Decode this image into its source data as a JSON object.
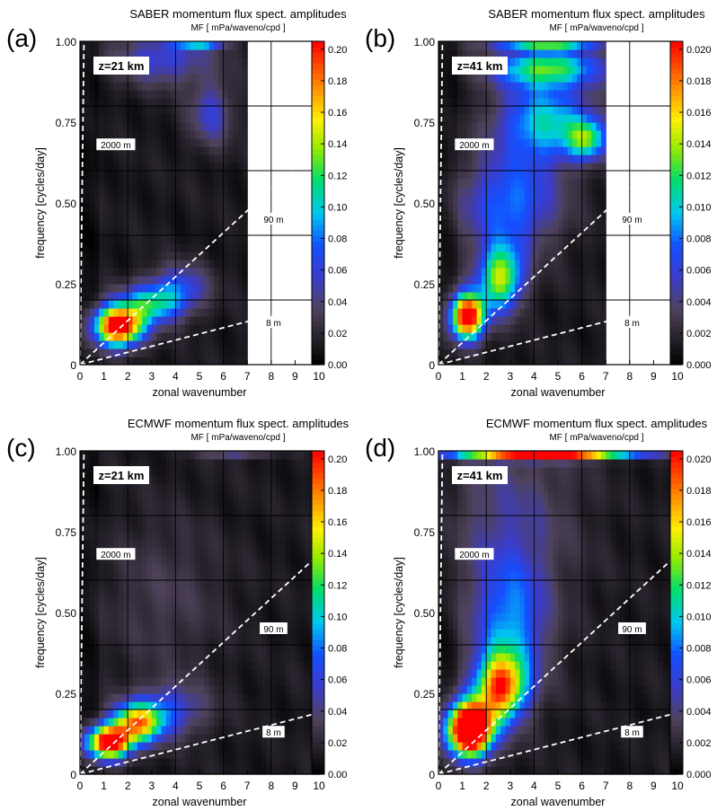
{
  "chart_data": [
    {
      "type": "heatmap",
      "panel_label": "(a)",
      "title": "SABER momentum flux spect. amplitudes",
      "subtitle": "MF [ mPa/waveno/cpd ]",
      "xlabel": "zonal wavenumber",
      "ylabel": "frequency [cycles/day]",
      "altitude_label": "z=21 km",
      "x_ticks": [
        "0",
        "1",
        "2",
        "3",
        "4",
        "5",
        "6",
        "7",
        "8",
        "9",
        "10"
      ],
      "y_ticks": [
        "0",
        "0.25",
        "0.50",
        "0.75",
        "1.00"
      ],
      "xlim": [
        0,
        10
      ],
      "ylim": [
        0,
        1
      ],
      "data_xmax": 7,
      "colorbar_ticks": [
        "0.00",
        "0.02",
        "0.04",
        "0.06",
        "0.08",
        "0.10",
        "0.12",
        "0.14",
        "0.16",
        "0.18",
        "0.20"
      ],
      "colorbar_range": [
        0,
        0.205
      ],
      "vertical_wavelength_lines": [
        {
          "label": "2000 m",
          "slope": 6.0,
          "label_at": [
            1.5,
            0.68
          ]
        },
        {
          "label": "90 m",
          "slope": 0.068,
          "label_at": [
            8.1,
            0.45
          ]
        },
        {
          "label": "8 m",
          "slope": 0.019,
          "label_at": [
            8.1,
            0.13
          ]
        }
      ],
      "features": [
        {
          "x": 1.6,
          "y": 0.12,
          "sx": 1.0,
          "sy": 0.06,
          "amp": 0.22
        },
        {
          "x": 3.0,
          "y": 0.19,
          "sx": 1.3,
          "sy": 0.06,
          "amp": 0.09
        },
        {
          "x": 4.2,
          "y": 0.24,
          "sx": 1.2,
          "sy": 0.07,
          "amp": 0.05
        },
        {
          "x": 5.5,
          "y": 0.78,
          "sx": 0.9,
          "sy": 0.1,
          "amp": 0.045
        },
        {
          "x": 3.5,
          "y": 0.95,
          "sx": 2.0,
          "sy": 0.08,
          "amp": 0.05
        },
        {
          "x": 5.0,
          "y": 1.0,
          "sx": 1.0,
          "sy": 0.02,
          "amp": 0.09
        }
      ]
    },
    {
      "type": "heatmap",
      "panel_label": "(b)",
      "title": "SABER momentum flux spect. amplitudes",
      "subtitle": "MF [ mPa/waveno/cpd ]",
      "xlabel": "zonal wavenumber",
      "ylabel": "frequency [cycles/day]",
      "altitude_label": "z=41 km",
      "x_ticks": [
        "0",
        "1",
        "2",
        "3",
        "4",
        "5",
        "6",
        "7",
        "8",
        "9",
        "10"
      ],
      "y_ticks": [
        "0",
        "0.25",
        "0.50",
        "0.75",
        "1.00"
      ],
      "xlim": [
        0,
        10
      ],
      "ylim": [
        0,
        1
      ],
      "data_xmax": 7,
      "colorbar_ticks": [
        "0.000",
        "0.002",
        "0.004",
        "0.006",
        "0.008",
        "0.010",
        "0.012",
        "0.014",
        "0.016",
        "0.018",
        "0.020"
      ],
      "colorbar_range": [
        0,
        0.0205
      ],
      "vertical_wavelength_lines": [
        {
          "label": "2000 m",
          "slope": 6.0,
          "label_at": [
            1.5,
            0.68
          ]
        },
        {
          "label": "90 m",
          "slope": 0.068,
          "label_at": [
            8.1,
            0.45
          ]
        },
        {
          "label": "8 m",
          "slope": 0.019,
          "label_at": [
            8.1,
            0.13
          ]
        }
      ],
      "features": [
        {
          "x": 1.2,
          "y": 0.15,
          "sx": 0.7,
          "sy": 0.07,
          "amp": 0.022
        },
        {
          "x": 2.6,
          "y": 0.27,
          "sx": 0.9,
          "sy": 0.1,
          "amp": 0.013
        },
        {
          "x": 3.0,
          "y": 0.5,
          "sx": 2.0,
          "sy": 0.15,
          "amp": 0.007
        },
        {
          "x": 4.5,
          "y": 0.75,
          "sx": 2.0,
          "sy": 0.12,
          "amp": 0.009
        },
        {
          "x": 6.2,
          "y": 0.7,
          "sx": 0.8,
          "sy": 0.06,
          "amp": 0.009
        },
        {
          "x": 4.5,
          "y": 0.92,
          "sx": 2.2,
          "sy": 0.06,
          "amp": 0.011
        },
        {
          "x": 4.5,
          "y": 1.0,
          "sx": 2.2,
          "sy": 0.02,
          "amp": 0.012
        }
      ]
    },
    {
      "type": "heatmap",
      "panel_label": "(c)",
      "title": "ECMWF momentum flux spect. amplitudes",
      "subtitle": "MF [ mPa/waveno/cpd ]",
      "xlabel": "zonal wavenumber",
      "ylabel": "frequency [cycles/day]",
      "altitude_label": "z=21 km",
      "x_ticks": [
        "0",
        "1",
        "2",
        "3",
        "4",
        "5",
        "6",
        "7",
        "8",
        "9",
        "10"
      ],
      "y_ticks": [
        "0",
        "0.25",
        "0.50",
        "0.75",
        "1.00"
      ],
      "xlim": [
        0,
        10
      ],
      "ylim": [
        0,
        1
      ],
      "data_xmax": 10,
      "colorbar_ticks": [
        "0.00",
        "0.02",
        "0.04",
        "0.06",
        "0.08",
        "0.10",
        "0.12",
        "0.14",
        "0.16",
        "0.18",
        "0.20"
      ],
      "colorbar_range": [
        0,
        0.205
      ],
      "vertical_wavelength_lines": [
        {
          "label": "2000 m",
          "slope": 6.0,
          "label_at": [
            1.5,
            0.68
          ]
        },
        {
          "label": "90 m",
          "slope": 0.068,
          "label_at": [
            8.1,
            0.45
          ]
        },
        {
          "label": "8 m",
          "slope": 0.019,
          "label_at": [
            8.1,
            0.13
          ]
        }
      ],
      "features": [
        {
          "x": 1.2,
          "y": 0.1,
          "sx": 0.9,
          "sy": 0.05,
          "amp": 0.22
        },
        {
          "x": 2.4,
          "y": 0.16,
          "sx": 1.0,
          "sy": 0.06,
          "amp": 0.15
        },
        {
          "x": 3.8,
          "y": 0.2,
          "sx": 1.5,
          "sy": 0.08,
          "amp": 0.05
        },
        {
          "x": 3.5,
          "y": 0.55,
          "sx": 2.5,
          "sy": 0.25,
          "amp": 0.018
        },
        {
          "x": 6.5,
          "y": 1.0,
          "sx": 1.5,
          "sy": 0.02,
          "amp": 0.04
        }
      ]
    },
    {
      "type": "heatmap",
      "panel_label": "(d)",
      "title": "ECMWF momentum flux spect. amplitudes",
      "subtitle": "MF [ mPa/waveno/cpd ]",
      "xlabel": "zonal wavenumber",
      "ylabel": "frequency [cycles/day]",
      "altitude_label": "z=41 km",
      "x_ticks": [
        "0",
        "1",
        "2",
        "3",
        "4",
        "5",
        "6",
        "7",
        "8",
        "9",
        "10"
      ],
      "y_ticks": [
        "0",
        "0.25",
        "0.50",
        "0.75",
        "1.00"
      ],
      "xlim": [
        0,
        10
      ],
      "ylim": [
        0,
        1
      ],
      "data_xmax": 10,
      "colorbar_ticks": [
        "0.000",
        "0.002",
        "0.004",
        "0.006",
        "0.008",
        "0.010",
        "0.012",
        "0.014",
        "0.016",
        "0.018",
        "0.020"
      ],
      "colorbar_range": [
        0,
        0.0205
      ],
      "vertical_wavelength_lines": [
        {
          "label": "2000 m",
          "slope": 6.0,
          "label_at": [
            1.5,
            0.68
          ]
        },
        {
          "label": "90 m",
          "slope": 0.068,
          "label_at": [
            8.1,
            0.45
          ]
        },
        {
          "label": "8 m",
          "slope": 0.019,
          "label_at": [
            8.1,
            0.13
          ]
        }
      ],
      "features": [
        {
          "x": 1.3,
          "y": 0.14,
          "sx": 0.9,
          "sy": 0.08,
          "amp": 0.03
        },
        {
          "x": 2.6,
          "y": 0.27,
          "sx": 1.0,
          "sy": 0.1,
          "amp": 0.016
        },
        {
          "x": 3.0,
          "y": 0.45,
          "sx": 1.5,
          "sy": 0.22,
          "amp": 0.007
        },
        {
          "x": 3.0,
          "y": 0.8,
          "sx": 2.8,
          "sy": 0.3,
          "amp": 0.003
        },
        {
          "x": 4.5,
          "y": 1.0,
          "sx": 3.5,
          "sy": 0.02,
          "amp": 0.03
        }
      ]
    }
  ]
}
